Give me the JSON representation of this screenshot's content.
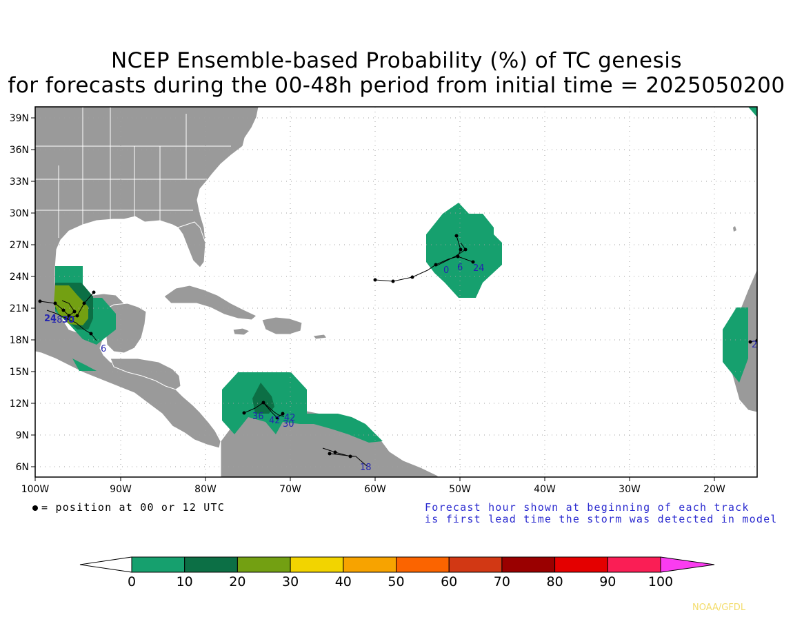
{
  "title_line1": "NCEP Ensemble-based Probability (%) of TC genesis",
  "title_line2": "for forecasts during the 00-48h period from initial time = 2025050200",
  "latitude_labels": [
    "39N",
    "36N",
    "33N",
    "30N",
    "27N",
    "24N",
    "21N",
    "18N",
    "15N",
    "12N",
    "9N",
    "6N"
  ],
  "longitude_labels": [
    "100W",
    "90W",
    "80W",
    "70W",
    "60W",
    "50W",
    "40W",
    "30W",
    "20W"
  ],
  "legend_note": "= position at 00 or 12 UTC",
  "forecast_note_line1": "Forecast hour shown at beginning of each track",
  "forecast_note_line2": "is first lead time the storm was detected in model",
  "colorbar": {
    "ticks": [
      "0",
      "10",
      "20",
      "30",
      "40",
      "50",
      "60",
      "70",
      "80",
      "90",
      "100"
    ],
    "colors": [
      "#ffffff",
      "#16a06e",
      "#0c6f45",
      "#73a012",
      "#f2d400",
      "#f7a300",
      "#fb6400",
      "#d23814",
      "#9a0000",
      "#e40000",
      "#fa1e55",
      "#fa3cf0"
    ]
  },
  "colors": {
    "land": "#9a9a9a",
    "ocean": "#ffffff",
    "border": "#ffffff",
    "grid": "#a0a0a0",
    "track_label": "#2424b0"
  },
  "track_labels": {
    "gulf_a": "24",
    "gulf_b": "30",
    "gulf_c": "18",
    "gulf_d": "6",
    "atl_a": "0",
    "atl_b": "6",
    "atl_c": "24",
    "car_a": "36",
    "car_b": "42",
    "car_c": "42",
    "car_d": "30",
    "sa_a": "18",
    "af_a": "2"
  },
  "credit": "NOAA/GFDL"
}
